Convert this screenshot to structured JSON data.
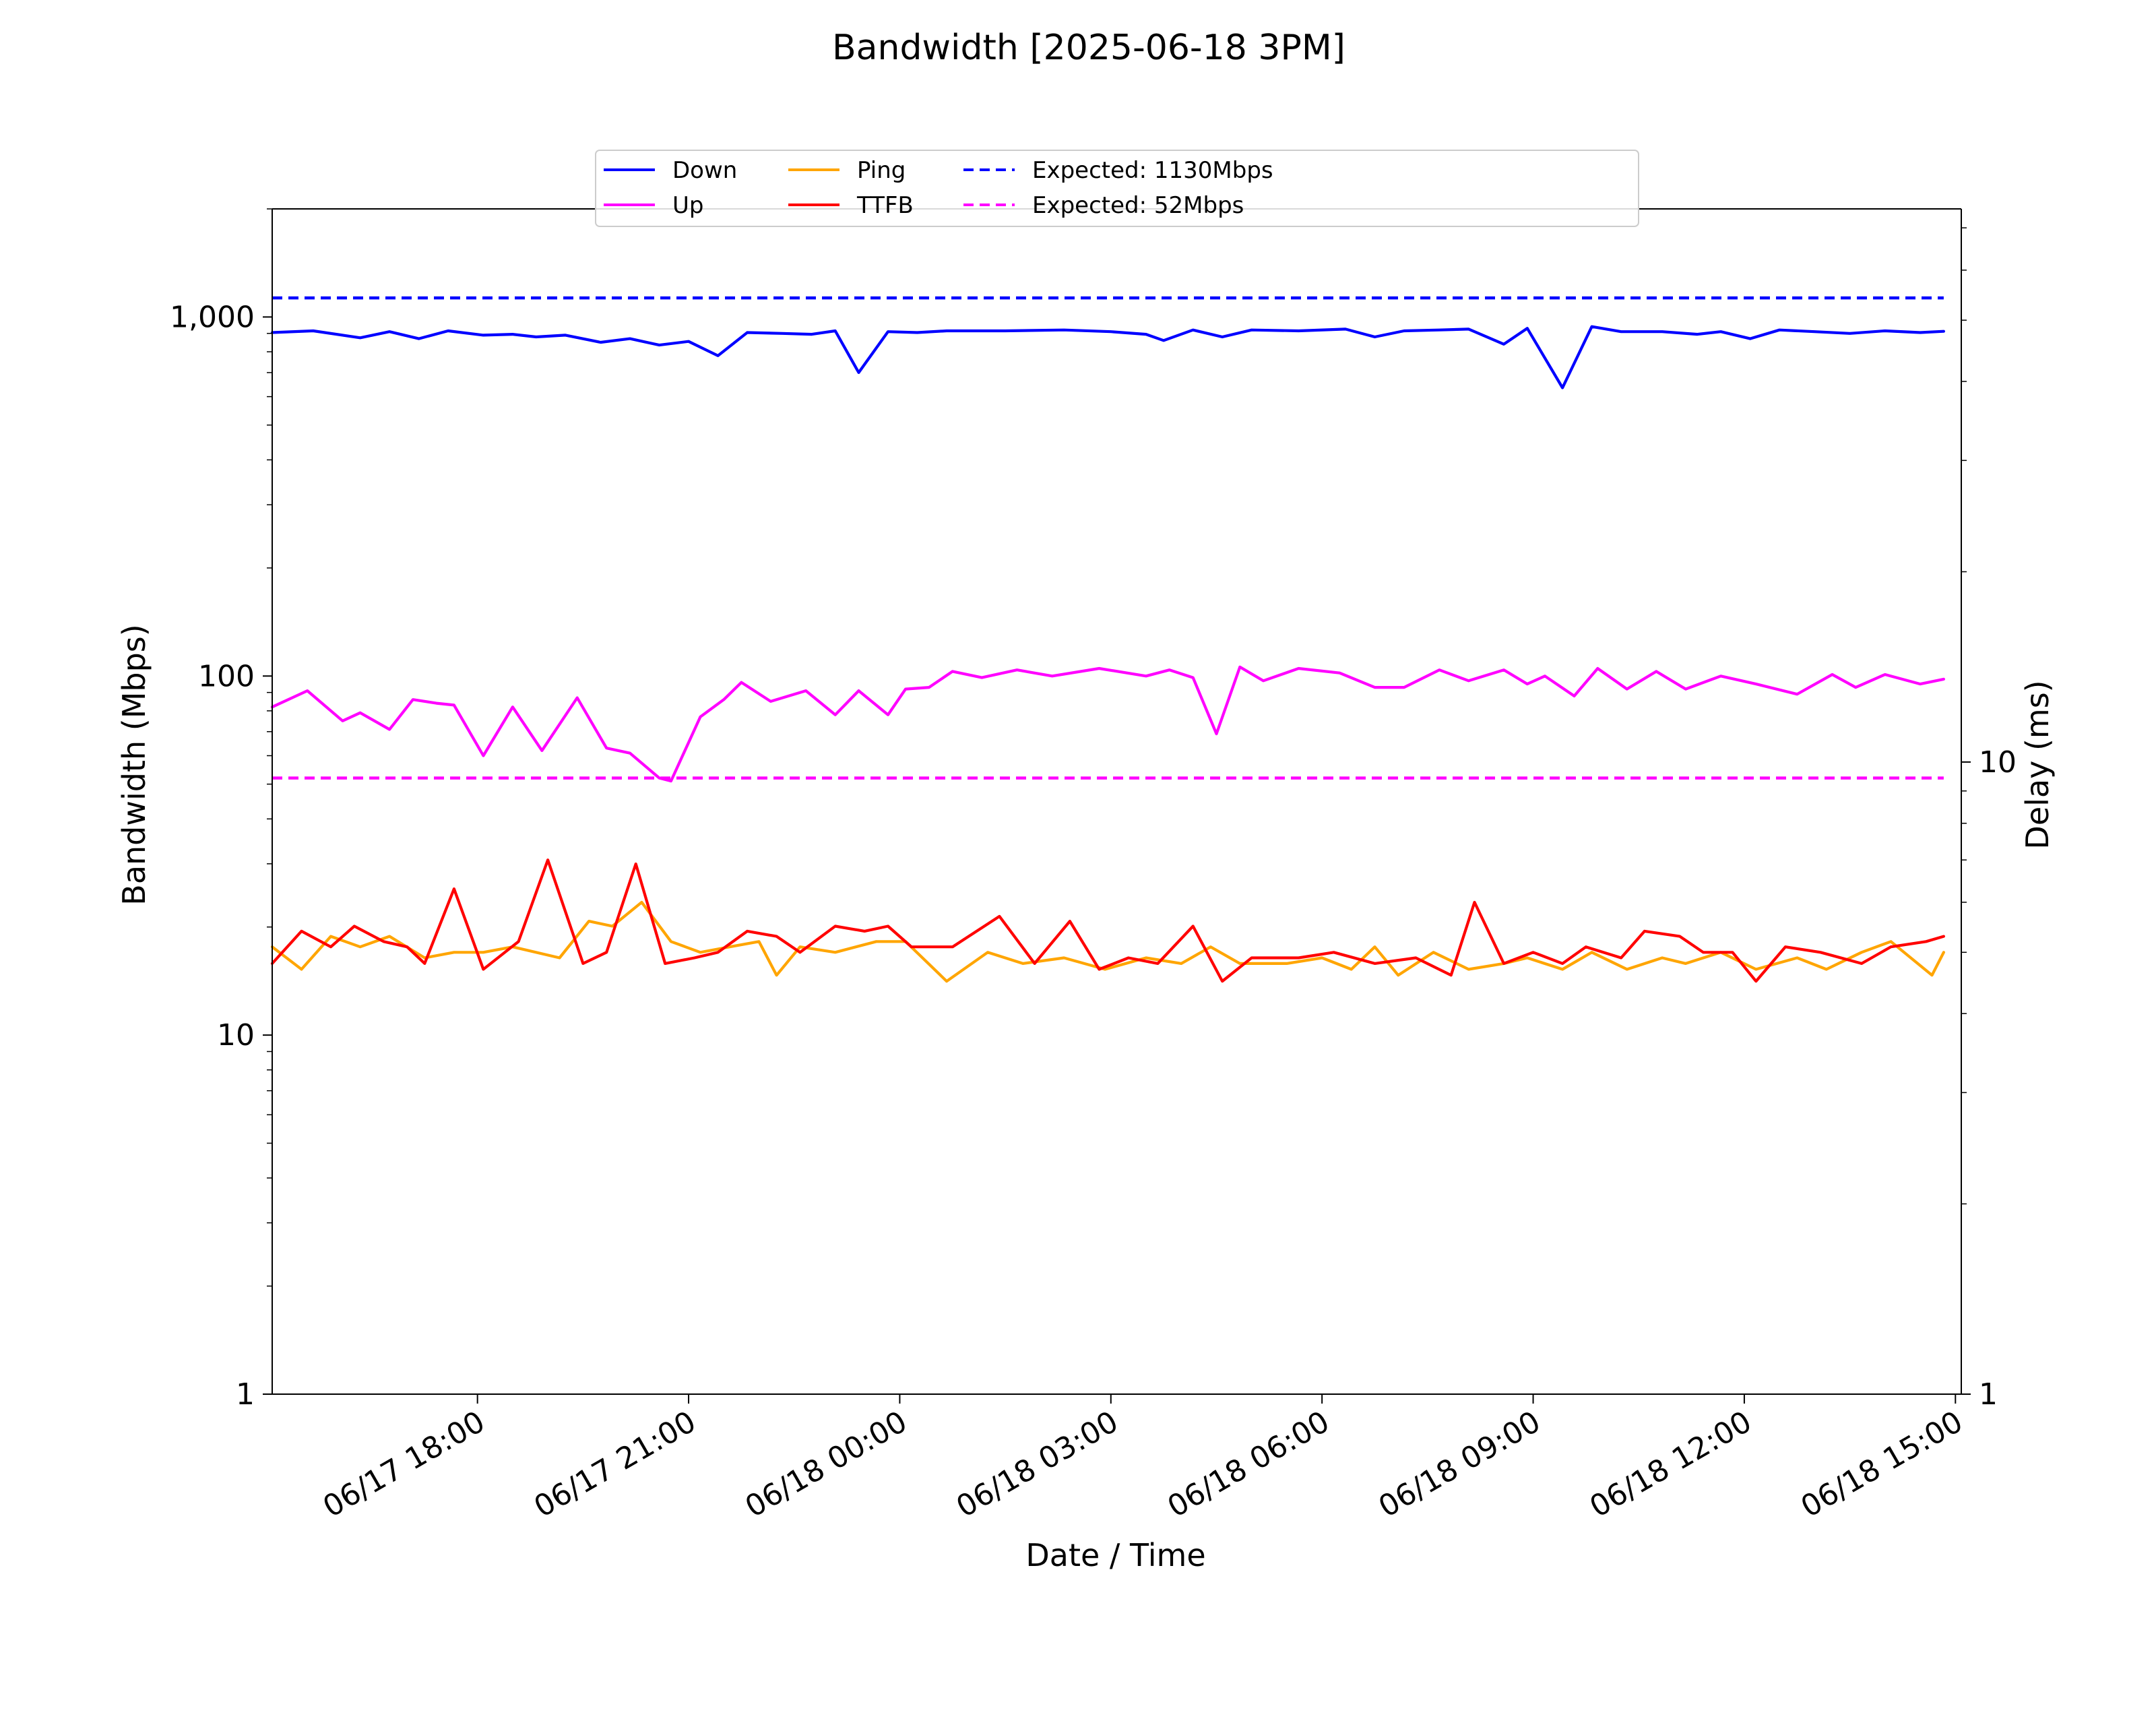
{
  "chart_data": {
    "type": "line",
    "title": "Bandwidth [2025-06-18 3PM]",
    "xlabel": "Date / Time",
    "ylabel_left": "Bandwidth (Mbps)",
    "ylabel_right": "Delay (ms)",
    "left_axis": {
      "scale": "log",
      "range": [
        1,
        2000
      ],
      "ticks": [
        1,
        10,
        100,
        1000
      ],
      "tick_labels": [
        "1",
        "10",
        "100",
        "1,000"
      ]
    },
    "right_axis": {
      "scale": "log",
      "range": [
        1,
        75
      ],
      "ticks": [
        1,
        10
      ],
      "tick_labels": [
        "1",
        "10"
      ]
    },
    "x_range": [
      "2025-06-17 15:05",
      "2025-06-18 15:05"
    ],
    "x_ticks": [
      "2025-06-17 18:00",
      "2025-06-17 21:00",
      "2025-06-18 00:00",
      "2025-06-18 03:00",
      "2025-06-18 06:00",
      "2025-06-18 09:00",
      "2025-06-18 12:00",
      "2025-06-18 15:00"
    ],
    "x_tick_labels": [
      "06/17 18:00",
      "06/17 21:00",
      "06/18 00:00",
      "06/18 03:00",
      "06/18 06:00",
      "06/18 09:00",
      "06/18 12:00",
      "06/18 15:00"
    ],
    "grid": false,
    "legend": {
      "placement": "top-center",
      "columns": 4
    },
    "series": [
      {
        "name": "Down",
        "axis": "left",
        "color": "#0000ff",
        "dash": "solid",
        "points": [
          [
            "2025-06-17 15:05",
            905
          ],
          [
            "2025-06-17 15:40",
            915
          ],
          [
            "2025-06-17 16:20",
            875
          ],
          [
            "2025-06-17 16:45",
            910
          ],
          [
            "2025-06-17 17:10",
            870
          ],
          [
            "2025-06-17 17:35",
            915
          ],
          [
            "2025-06-17 18:05",
            890
          ],
          [
            "2025-06-17 18:30",
            895
          ],
          [
            "2025-06-17 18:50",
            880
          ],
          [
            "2025-06-17 19:15",
            890
          ],
          [
            "2025-06-17 19:45",
            850
          ],
          [
            "2025-06-17 20:10",
            870
          ],
          [
            "2025-06-17 20:35",
            835
          ],
          [
            "2025-06-17 21:00",
            855
          ],
          [
            "2025-06-17 21:25",
            780
          ],
          [
            "2025-06-17 21:50",
            905
          ],
          [
            "2025-06-17 22:20",
            900
          ],
          [
            "2025-06-17 22:45",
            895
          ],
          [
            "2025-06-17 23:05",
            915
          ],
          [
            "2025-06-17 23:25",
            700
          ],
          [
            "2025-06-17 23:50",
            910
          ],
          [
            "2025-06-18 00:15",
            905
          ],
          [
            "2025-06-18 00:40",
            915
          ],
          [
            "2025-06-18 01:30",
            915
          ],
          [
            "2025-06-18 02:20",
            920
          ],
          [
            "2025-06-18 03:00",
            910
          ],
          [
            "2025-06-18 03:30",
            895
          ],
          [
            "2025-06-18 03:45",
            860
          ],
          [
            "2025-06-18 04:10",
            920
          ],
          [
            "2025-06-18 04:35",
            880
          ],
          [
            "2025-06-18 05:00",
            920
          ],
          [
            "2025-06-18 05:40",
            915
          ],
          [
            "2025-06-18 06:20",
            925
          ],
          [
            "2025-06-18 06:45",
            880
          ],
          [
            "2025-06-18 07:10",
            915
          ],
          [
            "2025-06-18 07:40",
            920
          ],
          [
            "2025-06-18 08:05",
            925
          ],
          [
            "2025-06-18 08:35",
            840
          ],
          [
            "2025-06-18 08:55",
            930
          ],
          [
            "2025-06-18 09:25",
            635
          ],
          [
            "2025-06-18 09:50",
            940
          ],
          [
            "2025-06-18 10:15",
            910
          ],
          [
            "2025-06-18 10:50",
            910
          ],
          [
            "2025-06-18 11:20",
            895
          ],
          [
            "2025-06-18 11:40",
            910
          ],
          [
            "2025-06-18 12:05",
            870
          ],
          [
            "2025-06-18 12:30",
            920
          ],
          [
            "2025-06-18 13:00",
            910
          ],
          [
            "2025-06-18 13:30",
            900
          ],
          [
            "2025-06-18 14:00",
            915
          ],
          [
            "2025-06-18 14:30",
            905
          ],
          [
            "2025-06-18 14:50",
            912
          ]
        ]
      },
      {
        "name": "Up",
        "axis": "left",
        "color": "#ff00ff",
        "dash": "solid",
        "points": [
          [
            "2025-06-17 15:05",
            82
          ],
          [
            "2025-06-17 15:35",
            91
          ],
          [
            "2025-06-17 16:05",
            75
          ],
          [
            "2025-06-17 16:20",
            79
          ],
          [
            "2025-06-17 16:45",
            71
          ],
          [
            "2025-06-17 17:05",
            86
          ],
          [
            "2025-06-17 17:25",
            84
          ],
          [
            "2025-06-17 17:40",
            83
          ],
          [
            "2025-06-17 18:05",
            60
          ],
          [
            "2025-06-17 18:30",
            82
          ],
          [
            "2025-06-17 18:55",
            62
          ],
          [
            "2025-06-17 19:25",
            87
          ],
          [
            "2025-06-17 19:50",
            63
          ],
          [
            "2025-06-17 20:10",
            61
          ],
          [
            "2025-06-17 20:35",
            52
          ],
          [
            "2025-06-17 20:45",
            51
          ],
          [
            "2025-06-17 21:10",
            77
          ],
          [
            "2025-06-17 21:30",
            86
          ],
          [
            "2025-06-17 21:45",
            96
          ],
          [
            "2025-06-17 22:10",
            85
          ],
          [
            "2025-06-17 22:40",
            91
          ],
          [
            "2025-06-17 23:05",
            78
          ],
          [
            "2025-06-17 23:25",
            91
          ],
          [
            "2025-06-17 23:50",
            78
          ],
          [
            "2025-06-18 00:05",
            92
          ],
          [
            "2025-06-18 00:25",
            93
          ],
          [
            "2025-06-18 00:45",
            103
          ],
          [
            "2025-06-18 01:10",
            99
          ],
          [
            "2025-06-18 01:40",
            104
          ],
          [
            "2025-06-18 02:10",
            100
          ],
          [
            "2025-06-18 02:50",
            105
          ],
          [
            "2025-06-18 03:30",
            100
          ],
          [
            "2025-06-18 03:50",
            104
          ],
          [
            "2025-06-18 04:10",
            99
          ],
          [
            "2025-06-18 04:30",
            69
          ],
          [
            "2025-06-18 04:50",
            106
          ],
          [
            "2025-06-18 05:10",
            97
          ],
          [
            "2025-06-18 05:40",
            105
          ],
          [
            "2025-06-18 06:15",
            102
          ],
          [
            "2025-06-18 06:45",
            93
          ],
          [
            "2025-06-18 07:10",
            93
          ],
          [
            "2025-06-18 07:40",
            104
          ],
          [
            "2025-06-18 08:05",
            97
          ],
          [
            "2025-06-18 08:35",
            104
          ],
          [
            "2025-06-18 08:55",
            95
          ],
          [
            "2025-06-18 09:10",
            100
          ],
          [
            "2025-06-18 09:35",
            88
          ],
          [
            "2025-06-18 09:55",
            105
          ],
          [
            "2025-06-18 10:20",
            92
          ],
          [
            "2025-06-18 10:45",
            103
          ],
          [
            "2025-06-18 11:10",
            92
          ],
          [
            "2025-06-18 11:40",
            100
          ],
          [
            "2025-06-18 12:10",
            95
          ],
          [
            "2025-06-18 12:45",
            89
          ],
          [
            "2025-06-18 13:15",
            101
          ],
          [
            "2025-06-18 13:35",
            93
          ],
          [
            "2025-06-18 14:00",
            101
          ],
          [
            "2025-06-18 14:30",
            95
          ],
          [
            "2025-06-18 14:50",
            98
          ]
        ]
      },
      {
        "name": "Ping",
        "axis": "right",
        "color": "#ffa500",
        "dash": "solid",
        "points": [
          [
            "2025-06-17 15:05",
            5.1
          ],
          [
            "2025-06-17 15:30",
            4.7
          ],
          [
            "2025-06-17 15:55",
            5.3
          ],
          [
            "2025-06-17 16:20",
            5.1
          ],
          [
            "2025-06-17 16:45",
            5.3
          ],
          [
            "2025-06-17 17:15",
            4.9
          ],
          [
            "2025-06-17 17:40",
            5.0
          ],
          [
            "2025-06-17 18:05",
            5.0
          ],
          [
            "2025-06-17 18:30",
            5.1
          ],
          [
            "2025-06-17 19:10",
            4.9
          ],
          [
            "2025-06-17 19:35",
            5.6
          ],
          [
            "2025-06-17 19:55",
            5.5
          ],
          [
            "2025-06-17 20:20",
            6.0
          ],
          [
            "2025-06-17 20:45",
            5.2
          ],
          [
            "2025-06-17 21:10",
            5.0
          ],
          [
            "2025-06-17 21:35",
            5.1
          ],
          [
            "2025-06-17 22:00",
            5.2
          ],
          [
            "2025-06-17 22:15",
            4.6
          ],
          [
            "2025-06-17 22:35",
            5.1
          ],
          [
            "2025-06-17 23:05",
            5.0
          ],
          [
            "2025-06-17 23:40",
            5.2
          ],
          [
            "2025-06-18 00:05",
            5.2
          ],
          [
            "2025-06-18 00:40",
            4.5
          ],
          [
            "2025-06-18 01:15",
            5.0
          ],
          [
            "2025-06-18 01:45",
            4.8
          ],
          [
            "2025-06-18 02:20",
            4.9
          ],
          [
            "2025-06-18 02:55",
            4.7
          ],
          [
            "2025-06-18 03:30",
            4.9
          ],
          [
            "2025-06-18 04:00",
            4.8
          ],
          [
            "2025-06-18 04:25",
            5.1
          ],
          [
            "2025-06-18 04:50",
            4.8
          ],
          [
            "2025-06-18 05:30",
            4.8
          ],
          [
            "2025-06-18 06:00",
            4.9
          ],
          [
            "2025-06-18 06:25",
            4.7
          ],
          [
            "2025-06-18 06:45",
            5.1
          ],
          [
            "2025-06-18 07:05",
            4.6
          ],
          [
            "2025-06-18 07:35",
            5.0
          ],
          [
            "2025-06-18 08:05",
            4.7
          ],
          [
            "2025-06-18 08:35",
            4.8
          ],
          [
            "2025-06-18 08:55",
            4.9
          ],
          [
            "2025-06-18 09:25",
            4.7
          ],
          [
            "2025-06-18 09:50",
            5.0
          ],
          [
            "2025-06-18 10:20",
            4.7
          ],
          [
            "2025-06-18 10:50",
            4.9
          ],
          [
            "2025-06-18 11:10",
            4.8
          ],
          [
            "2025-06-18 11:40",
            5.0
          ],
          [
            "2025-06-18 12:10",
            4.7
          ],
          [
            "2025-06-18 12:45",
            4.9
          ],
          [
            "2025-06-18 13:10",
            4.7
          ],
          [
            "2025-06-18 13:40",
            5.0
          ],
          [
            "2025-06-18 14:05",
            5.2
          ],
          [
            "2025-06-18 14:40",
            4.6
          ],
          [
            "2025-06-18 14:50",
            5.0
          ]
        ]
      },
      {
        "name": "TTFB",
        "axis": "right",
        "color": "#ff0000",
        "dash": "solid",
        "points": [
          [
            "2025-06-17 15:05",
            4.8
          ],
          [
            "2025-06-17 15:30",
            5.4
          ],
          [
            "2025-06-17 15:55",
            5.1
          ],
          [
            "2025-06-17 16:15",
            5.5
          ],
          [
            "2025-06-17 16:40",
            5.2
          ],
          [
            "2025-06-17 17:00",
            5.1
          ],
          [
            "2025-06-17 17:15",
            4.8
          ],
          [
            "2025-06-17 17:40",
            6.3
          ],
          [
            "2025-06-17 18:05",
            4.7
          ],
          [
            "2025-06-17 18:35",
            5.2
          ],
          [
            "2025-06-17 19:00",
            7.0
          ],
          [
            "2025-06-17 19:30",
            4.8
          ],
          [
            "2025-06-17 19:50",
            5.0
          ],
          [
            "2025-06-17 20:15",
            6.9
          ],
          [
            "2025-06-17 20:40",
            4.8
          ],
          [
            "2025-06-17 21:05",
            4.9
          ],
          [
            "2025-06-17 21:25",
            5.0
          ],
          [
            "2025-06-17 21:50",
            5.4
          ],
          [
            "2025-06-17 22:15",
            5.3
          ],
          [
            "2025-06-17 22:35",
            5.0
          ],
          [
            "2025-06-17 23:05",
            5.5
          ],
          [
            "2025-06-17 23:30",
            5.4
          ],
          [
            "2025-06-17 23:50",
            5.5
          ],
          [
            "2025-06-18 00:10",
            5.1
          ],
          [
            "2025-06-18 00:45",
            5.1
          ],
          [
            "2025-06-18 01:25",
            5.7
          ],
          [
            "2025-06-18 01:55",
            4.8
          ],
          [
            "2025-06-18 02:25",
            5.6
          ],
          [
            "2025-06-18 02:50",
            4.7
          ],
          [
            "2025-06-18 03:15",
            4.9
          ],
          [
            "2025-06-18 03:40",
            4.8
          ],
          [
            "2025-06-18 04:10",
            5.5
          ],
          [
            "2025-06-18 04:35",
            4.5
          ],
          [
            "2025-06-18 05:00",
            4.9
          ],
          [
            "2025-06-18 05:40",
            4.9
          ],
          [
            "2025-06-18 06:10",
            5.0
          ],
          [
            "2025-06-18 06:45",
            4.8
          ],
          [
            "2025-06-18 07:20",
            4.9
          ],
          [
            "2025-06-18 07:50",
            4.6
          ],
          [
            "2025-06-18 08:10",
            6.0
          ],
          [
            "2025-06-18 08:35",
            4.8
          ],
          [
            "2025-06-18 09:00",
            5.0
          ],
          [
            "2025-06-18 09:25",
            4.8
          ],
          [
            "2025-06-18 09:45",
            5.1
          ],
          [
            "2025-06-18 10:15",
            4.9
          ],
          [
            "2025-06-18 10:35",
            5.4
          ],
          [
            "2025-06-18 11:05",
            5.3
          ],
          [
            "2025-06-18 11:25",
            5.0
          ],
          [
            "2025-06-18 11:50",
            5.0
          ],
          [
            "2025-06-18 12:10",
            4.5
          ],
          [
            "2025-06-18 12:35",
            5.1
          ],
          [
            "2025-06-18 13:05",
            5.0
          ],
          [
            "2025-06-18 13:40",
            4.8
          ],
          [
            "2025-06-18 14:05",
            5.1
          ],
          [
            "2025-06-18 14:35",
            5.2
          ],
          [
            "2025-06-18 14:50",
            5.3
          ]
        ]
      },
      {
        "name": "Expected: 1130Mbps",
        "axis": "left",
        "color": "#0000ff",
        "dash": "dashed",
        "points": [
          [
            "2025-06-17 15:05",
            1130
          ],
          [
            "2025-06-18 14:50",
            1130
          ]
        ]
      },
      {
        "name": "Expected: 52Mbps",
        "axis": "left",
        "color": "#ff00ff",
        "dash": "dashed",
        "points": [
          [
            "2025-06-17 15:05",
            52
          ],
          [
            "2025-06-18 14:50",
            52
          ]
        ]
      }
    ]
  }
}
